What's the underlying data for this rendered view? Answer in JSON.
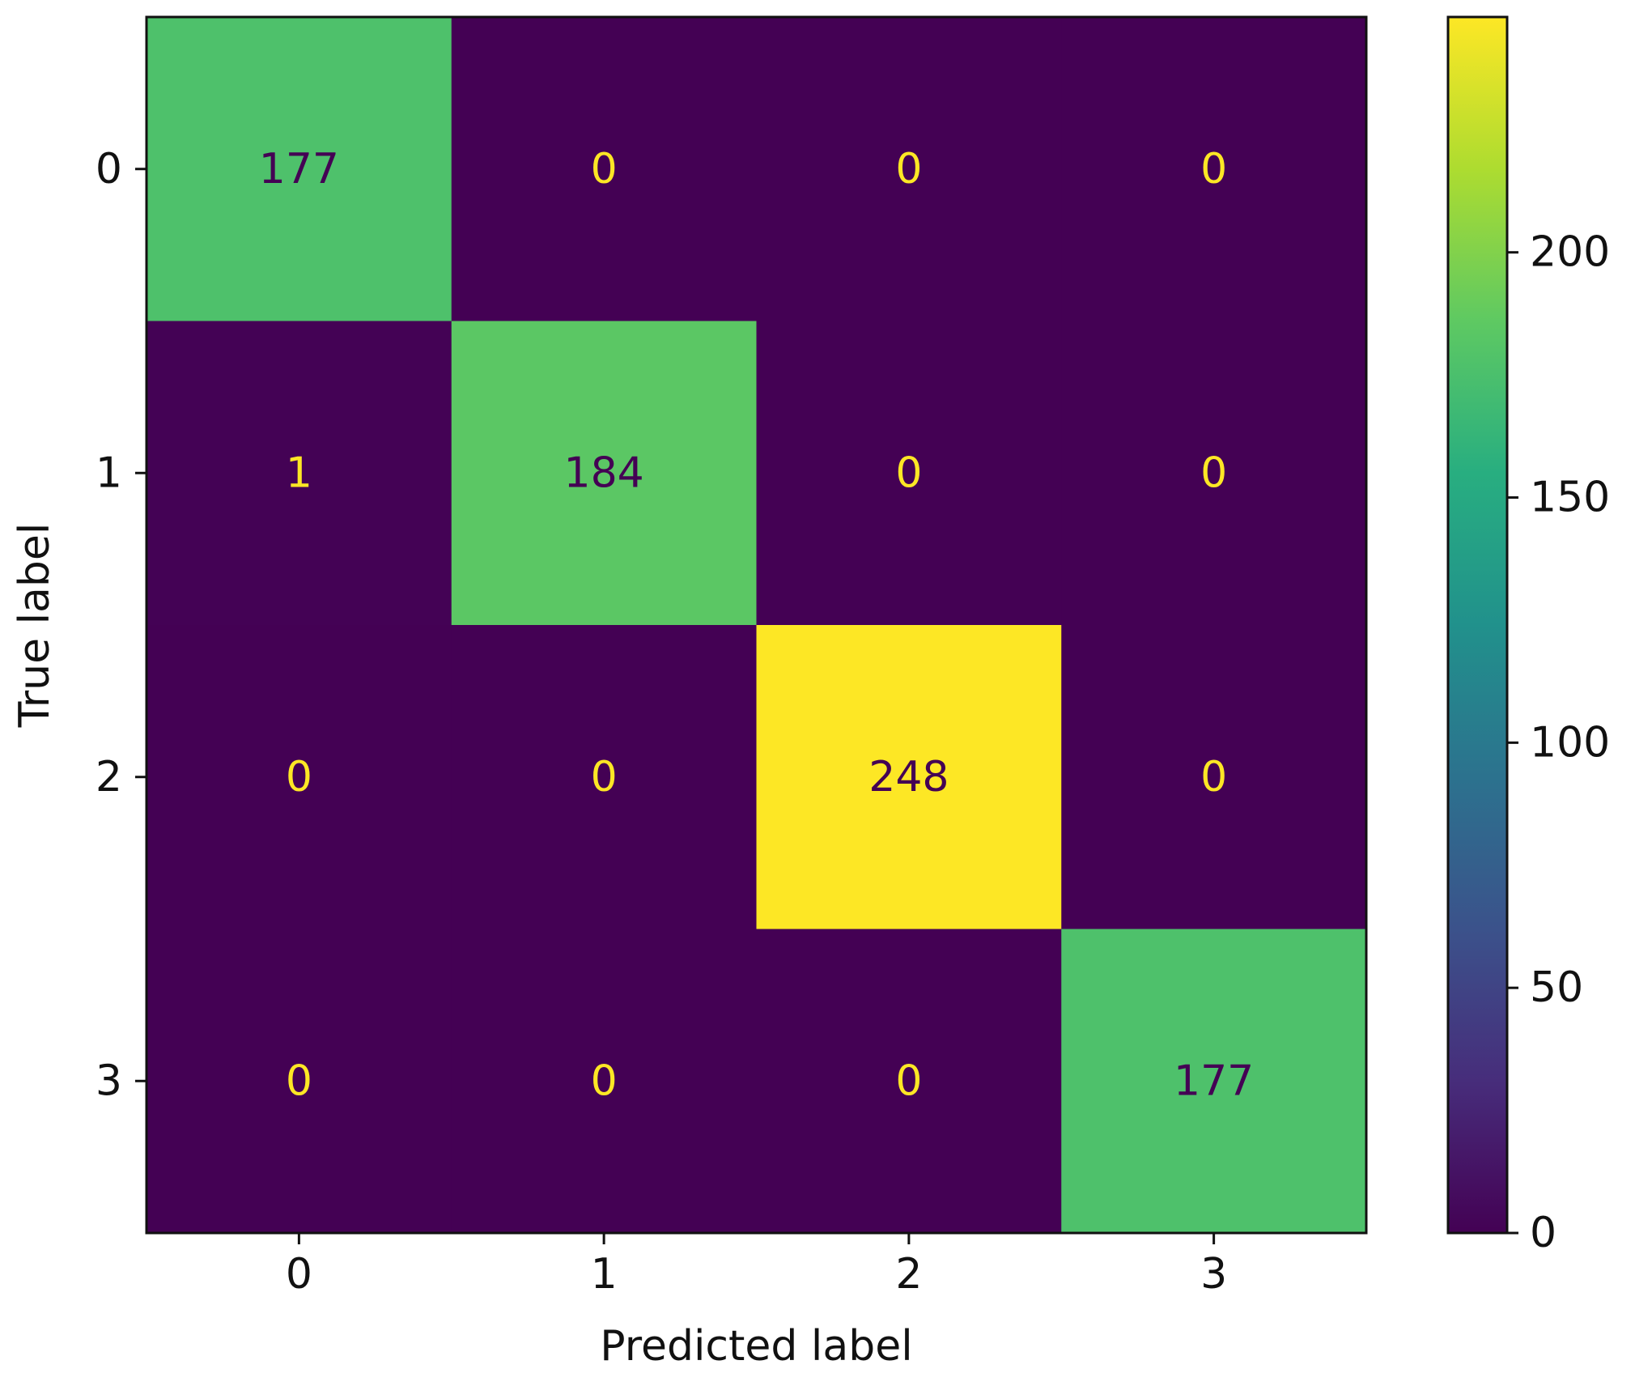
{
  "chart_data": {
    "type": "heatmap",
    "title": "",
    "xlabel": "Predicted label",
    "ylabel": "True label",
    "x_categories": [
      "0",
      "1",
      "2",
      "3"
    ],
    "y_categories": [
      "0",
      "1",
      "2",
      "3"
    ],
    "matrix": [
      [
        177,
        0,
        0,
        0
      ],
      [
        1,
        184,
        0,
        0
      ],
      [
        0,
        0,
        248,
        0
      ],
      [
        0,
        0,
        0,
        177
      ]
    ],
    "colormap": "viridis",
    "colorbar": {
      "range": [
        0,
        248
      ],
      "ticks": [
        0,
        50,
        100,
        150,
        200
      ],
      "tick_labels": [
        "0",
        "50",
        "100",
        "150",
        "200"
      ]
    },
    "text_colors": {
      "low": "#fde725",
      "high": "#440154"
    },
    "grid": false
  }
}
